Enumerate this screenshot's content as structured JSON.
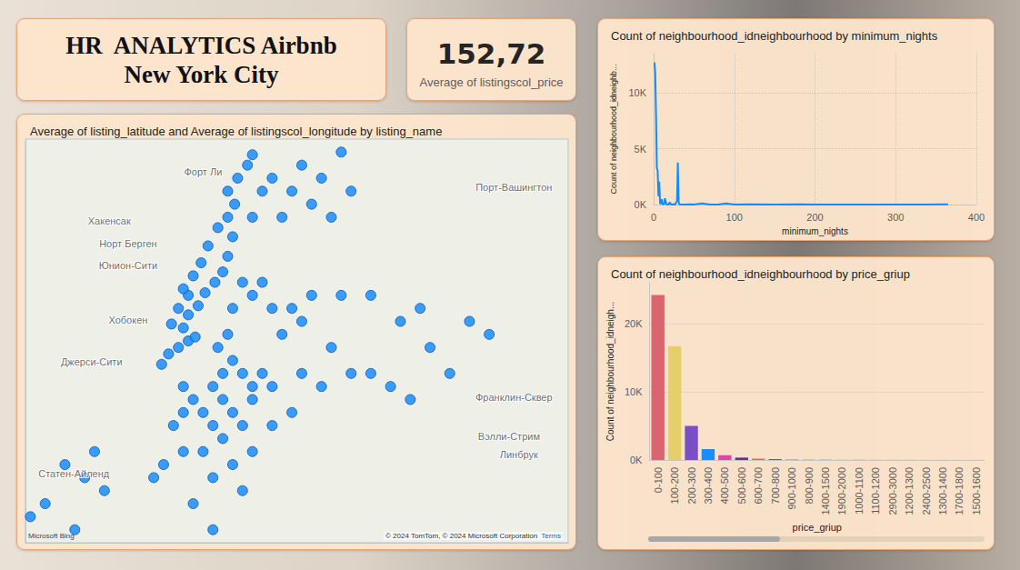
{
  "header": {
    "title": [
      "HR  ANALYTICS Airbnb",
      "New York City"
    ]
  },
  "kpi": {
    "value": 152.72,
    "label": "152,72",
    "caption": "Average of listingscol_price"
  },
  "chart_data": [
    {
      "type": "scatter",
      "title": "Average of listing_latitude and Average of listingscol_longitude by listing_name",
      "x": [
        -74.012,
        -74.005,
        -73.995,
        -73.985,
        -73.978,
        -73.99,
        -74.002,
        -73.985,
        -73.995,
        -73.975,
        -73.985,
        -73.968,
        -73.99,
        -73.958,
        -73.98,
        -73.95,
        -73.972,
        -73.945,
        -73.965,
        -73.94,
        -73.955,
        -73.945,
        -73.938,
        -73.945,
        -73.935,
        -73.925,
        -73.92,
        -73.99,
        -73.98,
        -73.96,
        -73.95,
        -73.94,
        -73.955,
        -73.945,
        -73.93,
        -73.92,
        -73.95,
        -73.97,
        -73.99,
        -74.0,
        -73.96,
        -73.94,
        -73.92,
        -73.91,
        -73.9,
        -73.93,
        -73.95,
        -73.97,
        -73.99,
        -74.01,
        -74.02,
        -73.96,
        -73.94,
        -73.92,
        -73.9,
        -73.88,
        -73.98,
        -73.96,
        -73.93,
        -73.94,
        -73.92,
        -73.93,
        -73.91,
        -73.9,
        -73.88,
        -73.87,
        -73.89,
        -73.86,
        -73.84,
        -73.83,
        -73.8,
        -73.82,
        -73.8,
        -73.78,
        -73.76,
        -73.74,
        -73.75,
        -73.77,
        -73.72,
        -73.7,
        -73.68,
        -73.85,
        -73.87,
        -73.92,
        -73.91,
        -73.9,
        -73.89,
        -73.88,
        -73.87,
        -73.86,
        -73.85,
        -73.83,
        -73.84,
        -73.82,
        -74.08,
        -74.09,
        -74.07,
        -74.11,
        -74.13,
        -74.145,
        -74.1
      ],
      "values": [
        40.707,
        40.715,
        40.72,
        40.725,
        40.728,
        40.735,
        40.738,
        40.745,
        40.75,
        40.752,
        40.76,
        40.762,
        40.765,
        40.77,
        40.775,
        40.778,
        40.785,
        40.79,
        40.798,
        40.805,
        40.812,
        40.82,
        40.83,
        40.84,
        40.85,
        40.86,
        40.868,
        40.69,
        40.68,
        40.69,
        40.7,
        40.71,
        40.72,
        40.73,
        40.7,
        40.69,
        40.68,
        40.67,
        40.67,
        40.66,
        40.66,
        40.67,
        40.68,
        40.7,
        40.69,
        40.66,
        40.65,
        40.64,
        40.64,
        40.63,
        40.62,
        40.62,
        40.63,
        40.64,
        40.66,
        40.67,
        40.6,
        40.58,
        40.61,
        40.75,
        40.76,
        40.77,
        40.77,
        40.75,
        40.75,
        40.74,
        40.73,
        40.76,
        40.72,
        40.76,
        40.76,
        40.7,
        40.7,
        40.69,
        40.68,
        40.72,
        40.75,
        40.74,
        40.7,
        40.74,
        40.73,
        40.69,
        40.7,
        40.82,
        40.84,
        40.85,
        40.82,
        40.84,
        40.86,
        40.83,
        40.85,
        40.87,
        40.82,
        40.84,
        40.64,
        40.62,
        40.61,
        40.63,
        40.6,
        40.59,
        40.58
      ],
      "color": "#1a8cff",
      "marker": "circle",
      "xlim": [
        -74.15,
        -73.6
      ],
      "ylim": [
        40.57,
        40.88
      ],
      "tick_labels": false,
      "grid": false,
      "annotations": [
        {
          "text": "Форт Ли",
          "x": -73.97,
          "y": 40.855
        },
        {
          "text": "Хакенсак",
          "x": -74.065,
          "y": 40.817
        },
        {
          "text": "Норт Берген",
          "x": -74.046,
          "y": 40.8
        },
        {
          "text": "Юнион-Сити",
          "x": -74.046,
          "y": 40.783
        },
        {
          "text": "Хобокен",
          "x": -74.046,
          "y": 40.741
        },
        {
          "text": "Джерси-Сити",
          "x": -74.083,
          "y": 40.709
        },
        {
          "text": "Порт-Вашингтон",
          "x": -73.655,
          "y": 40.843
        },
        {
          "text": "Франклин-Сквер",
          "x": -73.655,
          "y": 40.682
        },
        {
          "text": "Вэлли-Стрим",
          "x": -73.66,
          "y": 40.652
        },
        {
          "text": "Линбрук",
          "x": -73.65,
          "y": 40.638
        },
        {
          "text": "Статен-Айленд",
          "x": -74.101,
          "y": 40.623
        }
      ],
      "attribution": "© 2024 TomTom, © 2024 Microsoft Corporation",
      "attribution_link": "Terms",
      "logo": "Microsoft Bing"
    },
    {
      "type": "line",
      "title": "Count of neighbourhood_idneighbourhood by minimum_nights",
      "x_label": "minimum_nights",
      "y_label": "Count of neighbourhood_idneighb...",
      "x": [
        1,
        2,
        3,
        4,
        5,
        6,
        7,
        8,
        9,
        10,
        11,
        12,
        13,
        14,
        15,
        16,
        17,
        18,
        19,
        20,
        21,
        22,
        23,
        24,
        25,
        26,
        27,
        28,
        29,
        30,
        31,
        32,
        33,
        35,
        40,
        45,
        50,
        60,
        70,
        80,
        90,
        100,
        120,
        150,
        180,
        200,
        250,
        300,
        365
      ],
      "values": [
        12720,
        11696,
        7999,
        3303,
        3034,
        752,
        2058,
        130,
        80,
        483,
        33,
        52,
        35,
        562,
        279,
        19,
        14,
        28,
        14,
        223,
        82,
        14,
        5,
        6,
        75,
        14,
        32,
        202,
        340,
        3760,
        242,
        6,
        3,
        8,
        5,
        21,
        15,
        106,
        2,
        2,
        104,
        9,
        19,
        6,
        23,
        4,
        3,
        3,
        29
      ],
      "color": "#118dff",
      "xlim": [
        0,
        400
      ],
      "xticks": [
        0,
        100,
        200,
        300,
        400
      ],
      "ylim": [
        0,
        13500
      ],
      "yticks": [
        {
          "value": 0,
          "label": "0K"
        },
        {
          "value": 5000,
          "label": "5K"
        },
        {
          "value": 10000,
          "label": "10K"
        }
      ],
      "grid": true
    },
    {
      "type": "bar",
      "title": "Count of neighbourhood_idneighbourhood by price_griup",
      "x_label": "price_griup",
      "y_label": "Count of neighbourhood_idneigh...",
      "categories": [
        "0-100",
        "100-200",
        "200-300",
        "300-400",
        "400-500",
        "500-600",
        "600-700",
        "700-800",
        "900-1000",
        "800-900",
        "1400-1500",
        "1900-2000",
        "1000-1100",
        "1100-1200",
        "2900-3000",
        "1200-1300",
        "2400-2500",
        "1300-1400",
        "1700-1800",
        "1500-1600"
      ],
      "values": [
        24200,
        16700,
        5000,
        1600,
        700,
        350,
        200,
        130,
        80,
        70,
        40,
        35,
        30,
        25,
        20,
        20,
        15,
        15,
        12,
        10
      ],
      "colors": [
        "#dc6470",
        "#e5cf6a",
        "#7a4fc4",
        "#1a8cff",
        "#e044a7",
        "#6b2a8c",
        "#e66c37",
        "#8a4a9c",
        "#e06c9f",
        "#d9b300",
        "#d64550",
        "#e58fb5",
        "#c25fa8",
        "#e0719b",
        "#d86a8a",
        "#cf5fa0",
        "#d96c8c",
        "#c96bb0",
        "#e07a9a",
        "#d47596"
      ],
      "ylim": [
        0,
        26000
      ],
      "yticks": [
        {
          "value": 0,
          "label": "0K"
        },
        {
          "value": 10000,
          "label": "10K"
        },
        {
          "value": 20000,
          "label": "20K"
        }
      ],
      "grid": true
    }
  ]
}
